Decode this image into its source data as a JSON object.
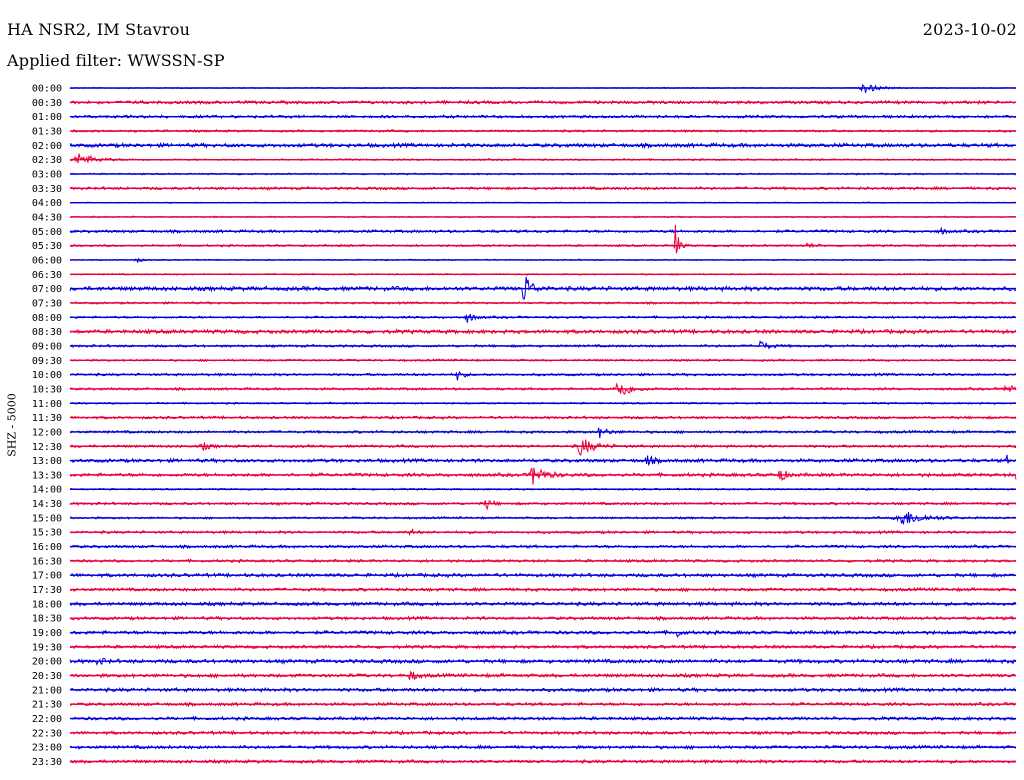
{
  "header": {
    "station": "HA NSR2, IM Stavrou",
    "date": "2023-10-02",
    "filter_label": "Applied filter: WWSSN-SP"
  },
  "chart_data": {
    "type": "line",
    "title": "HA NSR2, IM Stavrou",
    "ylabel": "SHZ - 5000",
    "rows": [
      "00:00",
      "00:30",
      "01:00",
      "01:30",
      "02:00",
      "02:30",
      "03:00",
      "03:30",
      "04:00",
      "04:30",
      "05:00",
      "05:30",
      "06:00",
      "06:30",
      "07:00",
      "07:30",
      "08:00",
      "08:30",
      "09:00",
      "09:30",
      "10:00",
      "10:30",
      "11:00",
      "11:30",
      "12:00",
      "12:30",
      "13:00",
      "13:30",
      "14:00",
      "14:30",
      "15:00",
      "15:30",
      "16:00",
      "16:30",
      "17:00",
      "17:30",
      "18:00",
      "18:30",
      "19:00",
      "19:30",
      "20:00",
      "20:30",
      "21:00",
      "21:30",
      "22:00",
      "22:30",
      "23:00",
      "23:30"
    ],
    "row_colors": [
      "#0000dd",
      "#e8003c"
    ],
    "noise": [
      0.6,
      1.8,
      1.6,
      1.3,
      2.2,
      1.0,
      0.9,
      1.6,
      0.6,
      0.8,
      1.6,
      1.2,
      0.7,
      0.8,
      2.4,
      1.2,
      1.3,
      2.2,
      1.4,
      1.2,
      1.4,
      1.4,
      1.0,
      1.5,
      1.5,
      1.5,
      2.0,
      2.0,
      1.0,
      1.5,
      1.2,
      1.5,
      1.6,
      1.6,
      2.0,
      1.8,
      2.0,
      1.8,
      2.0,
      1.8,
      2.2,
      2.0,
      2.0,
      1.8,
      1.8,
      1.8,
      1.8,
      1.8
    ],
    "events": [
      {
        "row": 0,
        "t": 0.84,
        "amp": 5,
        "spread": 0.012
      },
      {
        "row": 5,
        "t": 0.01,
        "amp": 6,
        "spread": 0.015
      },
      {
        "row": 10,
        "t": 0.92,
        "amp": 3,
        "spread": 0.005
      },
      {
        "row": 11,
        "t": 0.64,
        "amp": 22,
        "spread": 0.003
      },
      {
        "row": 11,
        "t": 0.78,
        "amp": 3,
        "spread": 0.005
      },
      {
        "row": 12,
        "t": 0.07,
        "amp": 3,
        "spread": 0.004
      },
      {
        "row": 14,
        "t": 0.48,
        "amp": 18,
        "spread": 0.006
      },
      {
        "row": 16,
        "t": 0.42,
        "amp": 5,
        "spread": 0.006
      },
      {
        "row": 18,
        "t": 0.73,
        "amp": 5,
        "spread": 0.008
      },
      {
        "row": 20,
        "t": 0.41,
        "amp": 7,
        "spread": 0.004
      },
      {
        "row": 21,
        "t": 0.58,
        "amp": 11,
        "spread": 0.01
      },
      {
        "row": 21,
        "t": 0.99,
        "amp": 9,
        "spread": 0.005
      },
      {
        "row": 24,
        "t": 0.56,
        "amp": 5,
        "spread": 0.008
      },
      {
        "row": 25,
        "t": 0.14,
        "amp": 4,
        "spread": 0.006
      },
      {
        "row": 25,
        "t": 0.54,
        "amp": 9,
        "spread": 0.012
      },
      {
        "row": 26,
        "t": 0.61,
        "amp": 5,
        "spread": 0.006
      },
      {
        "row": 26,
        "t": 0.99,
        "amp": 5,
        "spread": 0.002
      },
      {
        "row": 27,
        "t": 0.49,
        "amp": 10,
        "spread": 0.01
      },
      {
        "row": 27,
        "t": 0.75,
        "amp": 8,
        "spread": 0.005
      },
      {
        "row": 27,
        "t": 1.0,
        "amp": 4,
        "spread": 0.004
      },
      {
        "row": 29,
        "t": 0.44,
        "amp": 6,
        "spread": 0.005
      },
      {
        "row": 30,
        "t": 0.88,
        "amp": 8,
        "spread": 0.02
      },
      {
        "row": 31,
        "t": 0.36,
        "amp": 3,
        "spread": 0.004
      },
      {
        "row": 38,
        "t": 0.64,
        "amp": 6,
        "spread": 0.004
      },
      {
        "row": 40,
        "t": 0.03,
        "amp": 4,
        "spread": 0.005
      },
      {
        "row": 41,
        "t": 0.36,
        "amp": 5,
        "spread": 0.006
      }
    ]
  }
}
